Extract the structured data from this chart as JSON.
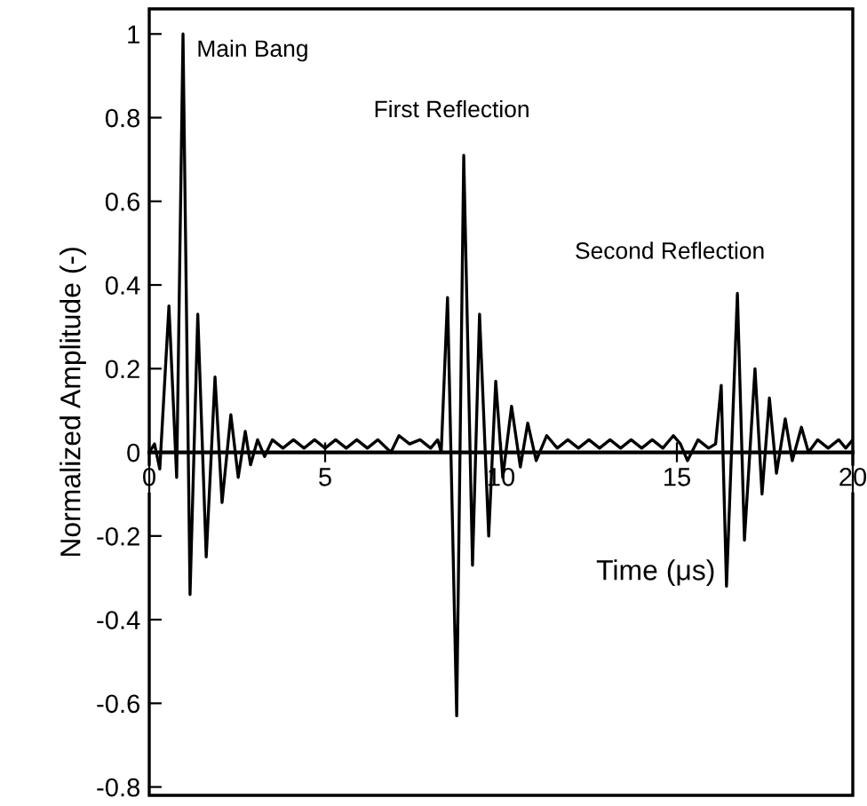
{
  "chart_data": {
    "type": "line",
    "xlabel": "Time (μs)",
    "ylabel": "Normalized Amplitude (-)",
    "xlim": [
      0,
      20
    ],
    "ylim": [
      -0.82,
      1.06
    ],
    "xticks": [
      0,
      5,
      10,
      15,
      20
    ],
    "yticks": [
      -0.8,
      -0.6,
      -0.4,
      -0.2,
      0,
      0.2,
      0.4,
      0.6,
      0.8,
      1
    ],
    "grid": false,
    "marker": "none",
    "line_style": "solid",
    "annotations": [
      "Main Bang",
      "First Reflection",
      "Second Reflection"
    ],
    "series": [
      {
        "color": "#000000",
        "x": [
          0,
          0.15,
          0.3,
          0.56,
          0.78,
          0.96,
          1.16,
          1.38,
          1.62,
          1.87,
          2.07,
          2.32,
          2.53,
          2.73,
          2.88,
          3.08,
          3.28,
          3.5,
          3.8,
          4.1,
          4.4,
          4.7,
          5.0,
          5.3,
          5.6,
          5.9,
          6.2,
          6.5,
          6.87,
          7.1,
          7.4,
          7.7,
          8.0,
          8.2,
          8.3,
          8.48,
          8.74,
          8.94,
          9.19,
          9.39,
          9.65,
          9.85,
          10.05,
          10.3,
          10.55,
          10.76,
          11.0,
          11.3,
          11.6,
          11.9,
          12.2,
          12.5,
          12.8,
          13.1,
          13.4,
          13.7,
          14.0,
          14.3,
          14.6,
          14.9,
          15.1,
          15.3,
          15.6,
          15.9,
          16.1,
          16.26,
          16.41,
          16.72,
          16.92,
          17.22,
          17.42,
          17.63,
          17.83,
          18.08,
          18.28,
          18.54,
          18.74,
          19.0,
          19.3,
          19.6,
          19.8,
          20
        ],
        "values": [
          0,
          0.02,
          -0.04,
          0.35,
          -0.06,
          1.0,
          -0.34,
          0.33,
          -0.25,
          0.18,
          -0.12,
          0.09,
          -0.06,
          0.05,
          -0.03,
          0.03,
          -0.01,
          0.03,
          0.01,
          0.03,
          0.01,
          0.03,
          0.01,
          0.03,
          0.01,
          0.03,
          0.01,
          0.03,
          0.0,
          0.04,
          0.02,
          0.03,
          0.01,
          0.03,
          0.0,
          0.37,
          -0.63,
          0.71,
          -0.27,
          0.33,
          -0.2,
          0.17,
          -0.06,
          0.11,
          -0.035,
          0.07,
          -0.02,
          0.04,
          0.01,
          0.03,
          0.01,
          0.03,
          0.01,
          0.03,
          0.01,
          0.03,
          0.01,
          0.03,
          0.01,
          0.04,
          0.02,
          -0.02,
          0.03,
          0.01,
          0.02,
          0.16,
          -0.32,
          0.38,
          -0.21,
          0.2,
          -0.1,
          0.13,
          -0.05,
          0.08,
          -0.02,
          0.06,
          0.0,
          0.03,
          0.01,
          0.03,
          0.01,
          0.03
        ]
      }
    ]
  }
}
